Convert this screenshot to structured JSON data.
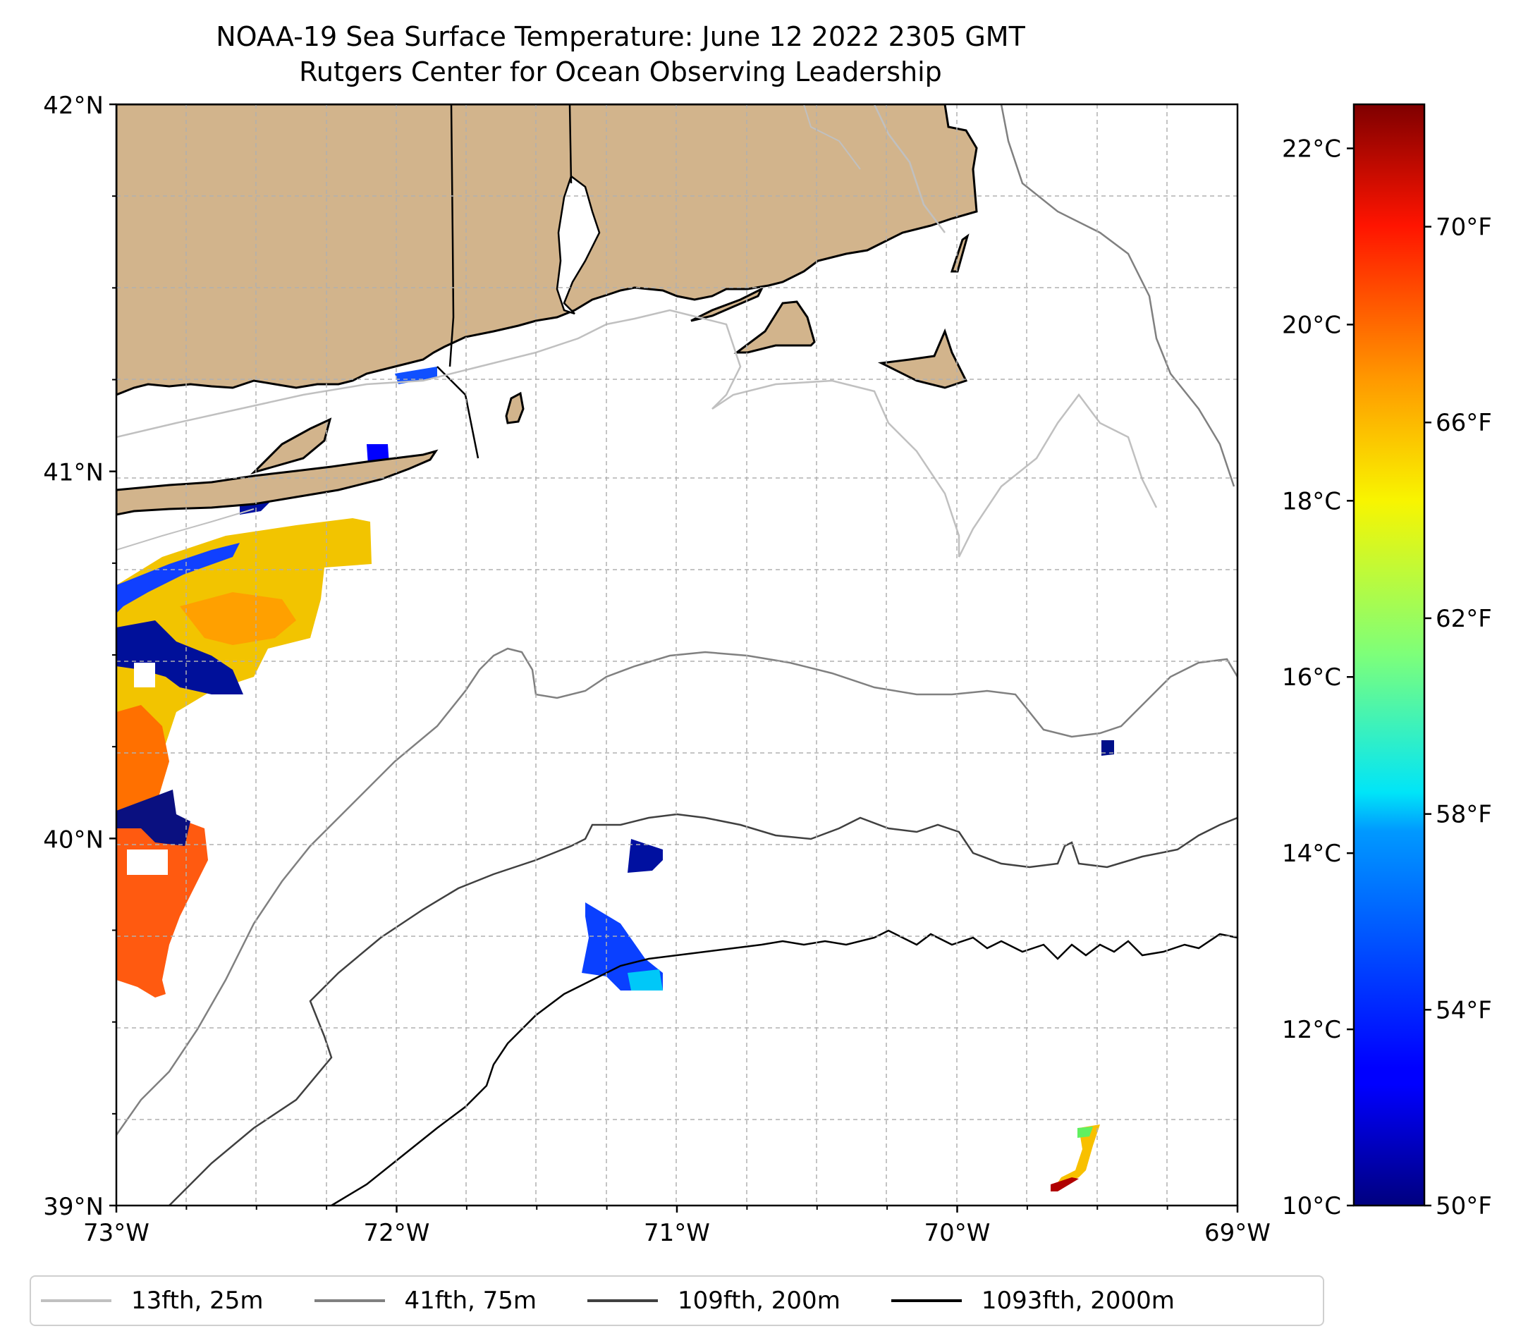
{
  "title": {
    "line1": "NOAA-19 Sea Surface Temperature: June 12 2022 2305 GMT",
    "line2": "Rutgers Center for Ocean Observing Leadership"
  },
  "map": {
    "lat_labels": [
      "42°N",
      "41°N",
      "40°N",
      "39°N"
    ],
    "lon_labels": [
      "73°W",
      "72°W",
      "71°W",
      "70°W",
      "69°W"
    ],
    "lat_range": [
      39,
      42
    ],
    "lon_range": [
      -73,
      -69
    ],
    "land_color": "#d2b48c",
    "ocean_color": "#ffffff"
  },
  "colorbar": {
    "celsius_labels": [
      "22°C",
      "20°C",
      "18°C",
      "16°C",
      "14°C",
      "12°C",
      "10°C"
    ],
    "fahrenheit_labels": [
      "70°F",
      "66°F",
      "62°F",
      "58°F",
      "54°F",
      "50°F"
    ],
    "celsius_range": [
      10,
      22.5
    ],
    "colormap": "jet"
  },
  "legend": {
    "items": [
      {
        "label": "13fth, 25m",
        "color": "#c0c0c0"
      },
      {
        "label": "41fth, 75m",
        "color": "#808080"
      },
      {
        "label": "109fth, 200m",
        "color": "#404040"
      },
      {
        "label": "1093fth, 2000m",
        "color": "#000000"
      }
    ]
  }
}
